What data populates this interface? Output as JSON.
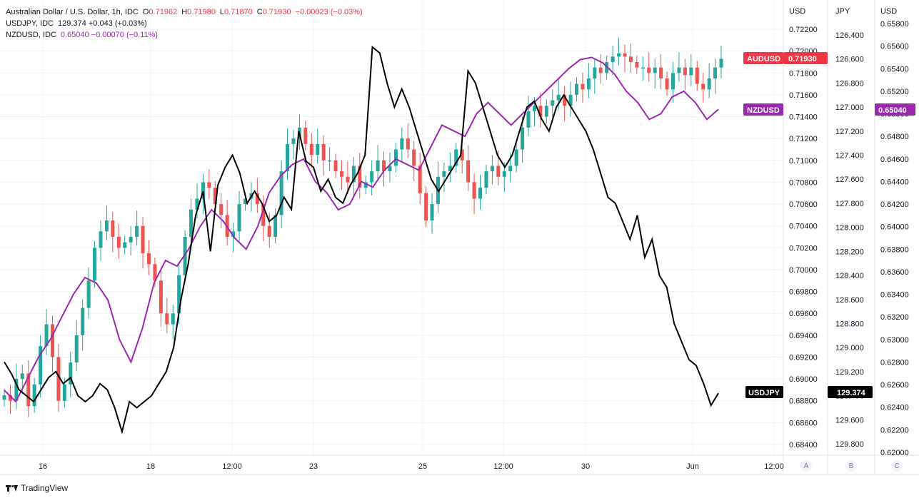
{
  "legend": {
    "main_symbol": "Australian Dollar / U.S. Dollar, 1h, IDC",
    "open_label": "O",
    "open": "0.71962",
    "high_label": "H",
    "high": "0.71980",
    "low_label": "L",
    "low": "0.71870",
    "close_label": "C",
    "close": "0.71930",
    "change": "−0.00023 (−0.03%)",
    "usdjpy_symbol": "USDJPY, IDC",
    "usdjpy_value": "129.374 +0.043 (+0.03%)",
    "nzdusd_symbol": "NZDUSD, IDC",
    "nzdusd_value": "0.65040 −0.00070 (−0.11%)"
  },
  "axes": {
    "a_unit": "USD",
    "b_unit": "JPY",
    "c_unit": "USD",
    "scale_buttons": [
      "A",
      "B",
      "C"
    ]
  },
  "badges": {
    "audusd_name": "AUDUSD",
    "audusd_price": "0.71930",
    "nzdusd_name": "NZDUSD",
    "nzdusd_price": "0.65040",
    "usdjpy_name": "USDJPY",
    "usdjpy_price": "129.374"
  },
  "colors": {
    "up": "#26a69a",
    "down": "#ef5350",
    "usdjpy": "#000000",
    "nzdusd": "#9c27b0",
    "audusd_badge": "#f23645",
    "nzdusd_badge": "#9c27b0",
    "usdjpy_badge": "#000000",
    "grid": "#f0f3fa"
  },
  "footer": {
    "brand": "TradingView"
  },
  "chart_data": {
    "type": "line",
    "time_labels": [
      "16",
      "18",
      "12:00",
      "23",
      "25",
      "12:00",
      "30",
      "Jun",
      "12:00"
    ],
    "grid": true,
    "scales": {
      "a_audusd": {
        "ylim": [
          0.683,
          0.723
        ],
        "ticks": [
          "0.72200",
          "0.72000",
          "0.71800",
          "0.71600",
          "0.71400",
          "0.71200",
          "0.71000",
          "0.70800",
          "0.70600",
          "0.70400",
          "0.70200",
          "0.70000",
          "0.69800",
          "0.69600",
          "0.69400",
          "0.69200",
          "0.69000",
          "0.68800",
          "0.68600",
          "0.68400"
        ]
      },
      "b_usdjpy": {
        "ylim": [
          126.25,
          129.93
        ],
        "inverted": true,
        "ticks": [
          "126.400",
          "126.600",
          "126.800",
          "127.000",
          "127.200",
          "127.400",
          "127.600",
          "127.800",
          "128.000",
          "128.200",
          "128.400",
          "128.600",
          "128.800",
          "129.000",
          "129.200",
          "129.400",
          "129.600",
          "129.800"
        ]
      },
      "c_nzdusd": {
        "ylim": [
          0.6194,
          0.6583
        ],
        "ticks": [
          "0.65800",
          "0.65600",
          "0.65400",
          "0.65200",
          "0.65000",
          "0.64800",
          "0.64600",
          "0.64400",
          "0.64200",
          "0.64000",
          "0.63800",
          "0.63600",
          "0.63400",
          "0.63200",
          "0.63000",
          "0.62800",
          "0.62600",
          "0.62400",
          "0.62200",
          "0.62000"
        ]
      }
    },
    "series": [
      {
        "name": "AUDUSD",
        "style": "candles",
        "values": [
          0.6885,
          0.688,
          0.69,
          0.6905,
          0.6875,
          0.6895,
          0.693,
          0.695,
          0.692,
          0.688,
          0.6895,
          0.6915,
          0.694,
          0.6965,
          0.699,
          0.702,
          0.7035,
          0.7045,
          0.703,
          0.702,
          0.7025,
          0.703,
          0.704,
          0.7015,
          0.7005,
          0.699,
          0.696,
          0.695,
          0.696,
          0.6995,
          0.703,
          0.7055,
          0.7065,
          0.708,
          0.7075,
          0.706,
          0.705,
          0.703,
          0.7035,
          0.706,
          0.7065,
          0.707,
          0.706,
          0.704,
          0.703,
          0.705,
          0.709,
          0.7115,
          0.712,
          0.713,
          0.7115,
          0.7105,
          0.7115,
          0.71,
          0.71,
          0.709,
          0.7085,
          0.708,
          0.7095,
          0.7075,
          0.708,
          0.709,
          0.71,
          0.709,
          0.7095,
          0.711,
          0.712,
          0.711,
          0.7095,
          0.707,
          0.7045,
          0.706,
          0.7085,
          0.709,
          0.7095,
          0.711,
          0.71,
          0.708,
          0.7065,
          0.7075,
          0.709,
          0.7095,
          0.7085,
          0.709,
          0.7095,
          0.711,
          0.713,
          0.7145,
          0.715,
          0.714,
          0.715,
          0.7155,
          0.716,
          0.715,
          0.716,
          0.717,
          0.7165,
          0.7175,
          0.7185,
          0.718,
          0.719,
          0.7195,
          0.7198,
          0.7195,
          0.719,
          0.7185,
          0.7185,
          0.718,
          0.7185,
          0.7175,
          0.7165,
          0.718,
          0.7185,
          0.7178,
          0.7185,
          0.717,
          0.7165,
          0.7175,
          0.7185,
          0.7193
        ]
      },
      {
        "name": "USDJPY",
        "style": "line",
        "values": [
          129.12,
          129.22,
          129.35,
          129.4,
          129.45,
          129.35,
          129.25,
          129.2,
          129.3,
          129.25,
          129.4,
          129.45,
          129.4,
          129.3,
          129.35,
          129.5,
          129.7,
          129.45,
          129.5,
          129.45,
          129.4,
          129.3,
          129.2,
          129.0,
          128.6,
          128.3,
          127.9,
          127.7,
          128.2,
          127.65,
          127.5,
          127.4,
          127.55,
          127.8,
          127.7,
          127.8,
          127.95,
          127.9,
          127.75,
          127.85,
          127.2,
          127.45,
          127.5,
          127.7,
          127.6,
          127.75,
          127.8,
          127.65,
          127.55,
          127.4,
          126.5,
          126.55,
          126.8,
          127.0,
          126.85,
          127.0,
          127.2,
          127.4,
          127.6,
          127.7,
          127.6,
          127.5,
          127.4,
          126.7,
          126.8,
          127.0,
          127.2,
          127.4,
          127.5,
          127.4,
          127.2,
          127.0,
          126.95,
          127.1,
          127.2,
          127.0,
          126.9,
          127.0,
          127.1,
          127.2,
          127.35,
          127.55,
          127.75,
          127.8,
          127.95,
          128.1,
          127.9,
          128.25,
          128.1,
          128.4,
          128.5,
          128.8,
          128.95,
          129.1,
          129.15,
          129.3,
          129.48,
          129.38
        ]
      },
      {
        "name": "NZDUSD",
        "style": "line",
        "values": [
          0.6255,
          0.6245,
          0.6265,
          0.6285,
          0.63,
          0.632,
          0.634,
          0.6355,
          0.635,
          0.6335,
          0.63,
          0.628,
          0.631,
          0.635,
          0.637,
          0.6365,
          0.638,
          0.64,
          0.6415,
          0.6405,
          0.639,
          0.638,
          0.64,
          0.643,
          0.6445,
          0.6455,
          0.646,
          0.644,
          0.643,
          0.6415,
          0.642,
          0.644,
          0.6435,
          0.645,
          0.646,
          0.6455,
          0.645,
          0.647,
          0.649,
          0.6485,
          0.648,
          0.65,
          0.651,
          0.65,
          0.649,
          0.65,
          0.651,
          0.652,
          0.653,
          0.654,
          0.6548,
          0.655,
          0.6545,
          0.6535,
          0.652,
          0.651,
          0.6495,
          0.65,
          0.6515,
          0.652,
          0.651,
          0.6495,
          0.6504
        ]
      }
    ]
  }
}
